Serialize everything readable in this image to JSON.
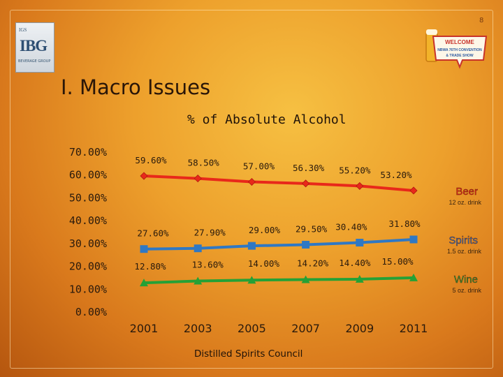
{
  "page_number": "8",
  "logo": {
    "top_text": "IGS",
    "main_text": "IBG",
    "bottom_text": "BEVERAGE GROUP"
  },
  "badge": {
    "line1": "WELCOME",
    "line2": "NBWA 76TH CONVENTION",
    "line3": "& TRADE SHOW"
  },
  "slide_title": "I. Macro Issues",
  "source": "Distilled Spirits Council",
  "chart_data": {
    "type": "line",
    "title": "% of Absolute Alcohol",
    "x": [
      "2001",
      "2003",
      "2005",
      "2007",
      "2009",
      "2011"
    ],
    "yticks": [
      "0.00%",
      "10.00%",
      "20.00%",
      "30.00%",
      "40.00%",
      "50.00%",
      "60.00%",
      "70.00%"
    ],
    "ylim": [
      0,
      70
    ],
    "grid": false,
    "legend": "right, inline next to series",
    "series": [
      {
        "name": "Beer",
        "sub": "12 oz. drink",
        "color": "#e8281a",
        "marker": "diamond",
        "values": [
          59.6,
          58.5,
          57.0,
          56.3,
          55.2,
          53.2
        ],
        "labels": [
          "59.60%",
          "58.50%",
          "57.00%",
          "56.30%",
          "55.20%",
          "53.20%"
        ]
      },
      {
        "name": "Spirits",
        "sub": "1.5 oz. drink",
        "color": "#2f78c4",
        "marker": "square",
        "values": [
          27.6,
          27.9,
          29.0,
          29.5,
          30.4,
          31.8
        ],
        "labels": [
          "27.60%",
          "27.90%",
          "29.00%",
          "29.50%",
          "30.40%",
          "31.80%"
        ]
      },
      {
        "name": "Wine",
        "sub": "5 oz. drink",
        "color": "#25a136",
        "marker": "triangle",
        "values": [
          12.8,
          13.6,
          14.0,
          14.2,
          14.4,
          15.0
        ],
        "labels": [
          "12.80%",
          "13.60%",
          "14.00%",
          "14.20%",
          "14.40%",
          "15.00%"
        ]
      }
    ]
  }
}
